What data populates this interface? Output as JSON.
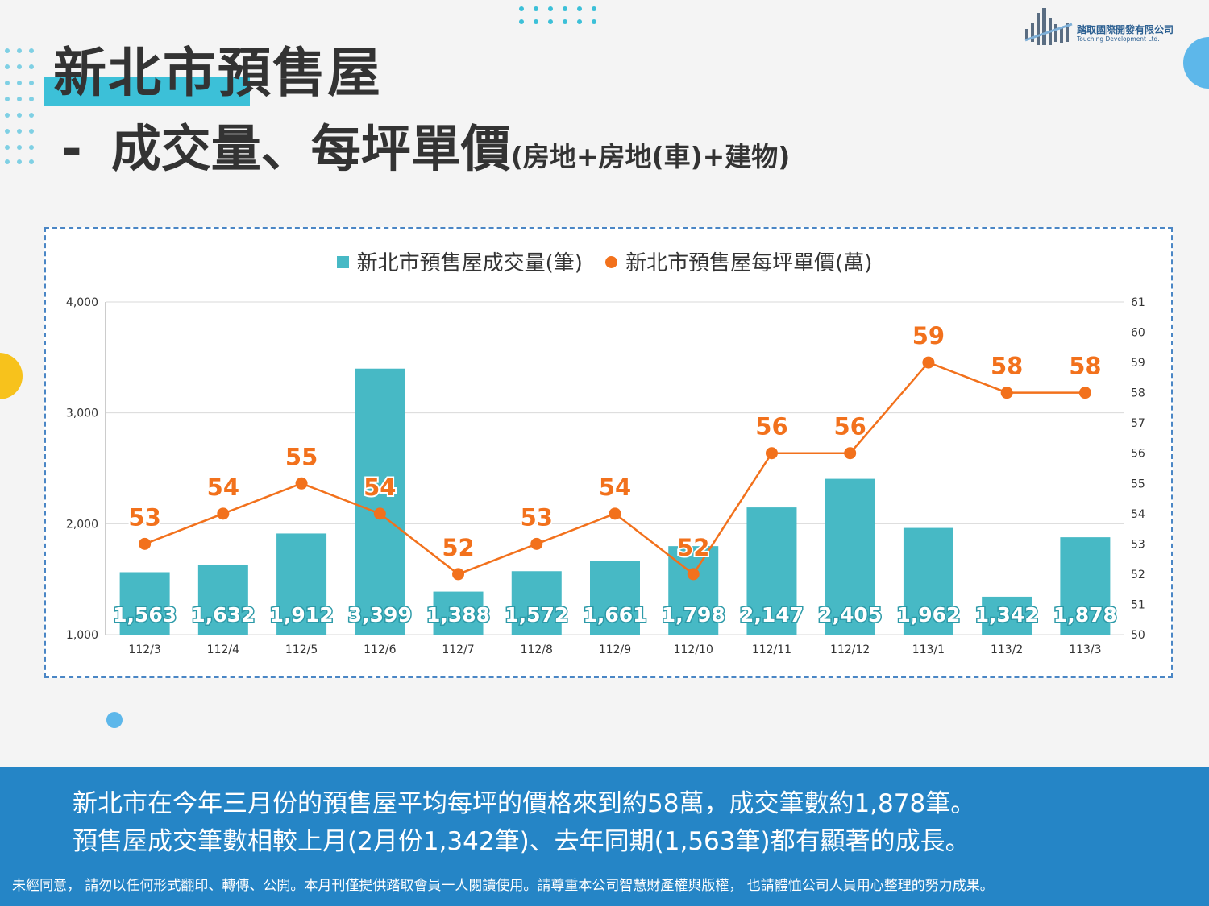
{
  "title": {
    "line1": "新北市預售屋",
    "line2_dash": "-",
    "line2_main": "成交量、每坪單價",
    "line2_sub": "(房地+房地(車)+建物)"
  },
  "logo": {
    "name": "踏取國際開發有限公司",
    "english": "Touching Development Ltd."
  },
  "chart_data": {
    "type": "bar+line",
    "categories": [
      "112/3",
      "112/4",
      "112/5",
      "112/6",
      "112/7",
      "112/8",
      "112/9",
      "112/10",
      "112/11",
      "112/12",
      "113/1",
      "113/2",
      "113/3"
    ],
    "series": [
      {
        "name": "新北市預售屋成交量(筆)",
        "type": "bar",
        "axis": "left",
        "values": [
          1563,
          1632,
          1912,
          3399,
          1388,
          1572,
          1661,
          1798,
          2147,
          2405,
          1962,
          1342,
          1878
        ],
        "labels": [
          "1,563",
          "1,632",
          "1,912",
          "3,399",
          "1,388",
          "1,572",
          "1,661",
          "1,798",
          "2,147",
          "2,405",
          "1,962",
          "1,342",
          "1,878"
        ]
      },
      {
        "name": "新北市預售屋每坪單價(萬)",
        "type": "line",
        "axis": "right",
        "values": [
          53,
          54,
          55,
          54,
          52,
          53,
          54,
          52,
          56,
          56,
          59,
          58,
          58
        ]
      }
    ],
    "left_axis": {
      "min": 1000,
      "max": 4000,
      "ticks": [
        1000,
        2000,
        3000,
        4000
      ],
      "tick_labels": [
        "1,000",
        "2,000",
        "3,000",
        "4,000"
      ]
    },
    "right_axis": {
      "min": 50,
      "max": 61,
      "ticks": [
        50,
        51,
        52,
        53,
        54,
        55,
        56,
        57,
        58,
        59,
        60,
        61
      ]
    },
    "colors": {
      "bar": "#47b9c5",
      "line": "#f2711c",
      "grid": "#d9d9d9"
    }
  },
  "footer": {
    "line1": "新北市在今年三月份的預售屋平均每坪的價格來到約58萬，成交筆數約1,878筆。",
    "line2": "預售屋成交筆數相較上月(2月份1,342筆)、去年同期(1,563筆)都有顯著的成長。",
    "disclaimer": "未經同意， 請勿以任何形式翻印、轉傳、公開。本月刊僅提供踏取會員一人閱讀使用。請尊重本公司智慧財產權與版權， 也請體恤公司人員用心整理的努力成果。"
  }
}
